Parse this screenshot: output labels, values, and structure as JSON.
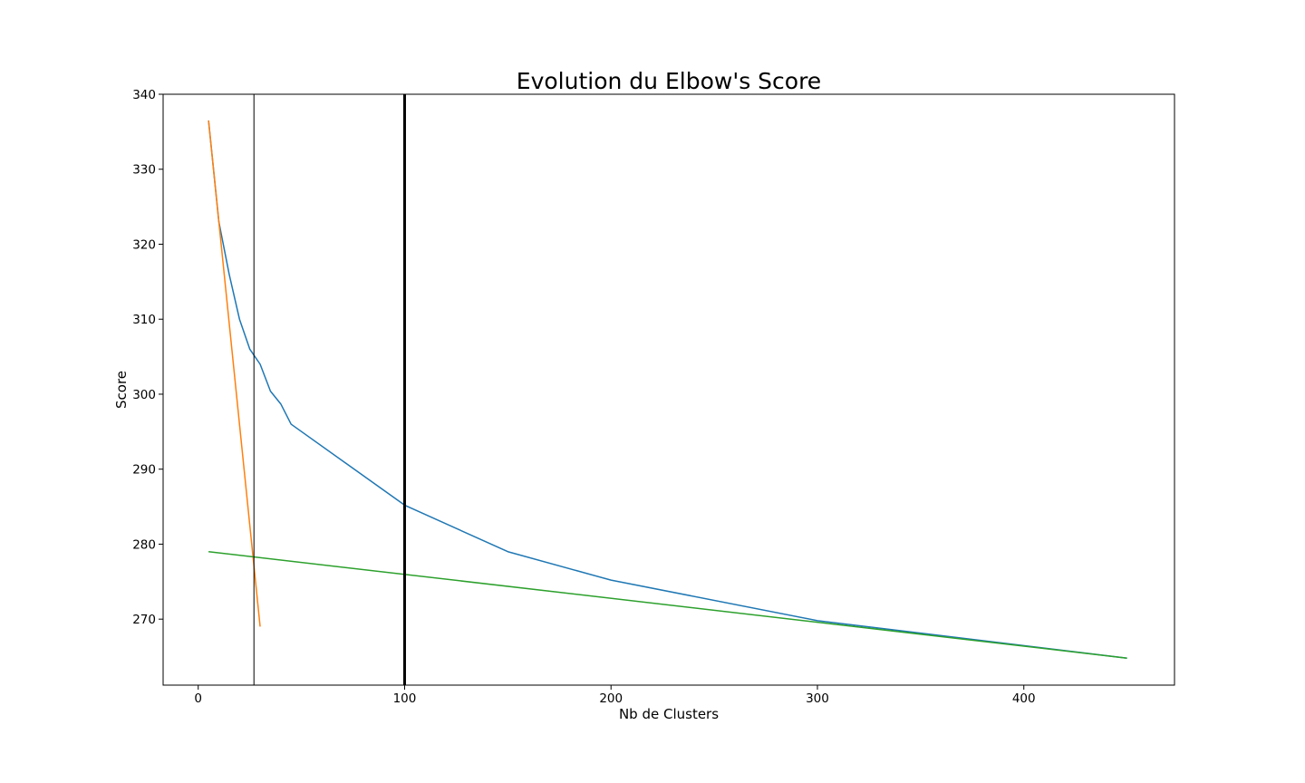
{
  "chart_data": {
    "type": "line",
    "title": "Evolution du Elbow's Score",
    "xlabel": "Nb de Clusters",
    "ylabel": "Score",
    "xlim": [
      -17,
      473
    ],
    "ylim": [
      261.2,
      340
    ],
    "xticks": [
      0,
      100,
      200,
      300,
      400
    ],
    "yticks": [
      270,
      280,
      290,
      300,
      310,
      320,
      330,
      340
    ],
    "grid": false,
    "series": [
      {
        "color": "#1f77b4",
        "x": [
          5,
          10,
          15,
          20,
          25,
          30,
          35,
          40,
          45,
          100,
          150,
          200,
          300,
          450
        ],
        "y": [
          336.5,
          323,
          316,
          310,
          306,
          304,
          300.4,
          298.7,
          296,
          285.2,
          279,
          275.2,
          269.8,
          264.8
        ]
      },
      {
        "color": "#ff7f0e",
        "x": [
          5,
          30
        ],
        "y": [
          336.5,
          269
        ]
      },
      {
        "color": "#2ca02c",
        "x": [
          5,
          450
        ],
        "y": [
          279,
          264.8
        ]
      }
    ],
    "vlines": [
      {
        "x": 27,
        "color": "#000000",
        "width": 1
      },
      {
        "x": 100,
        "color": "#000000",
        "width": 3
      }
    ]
  }
}
